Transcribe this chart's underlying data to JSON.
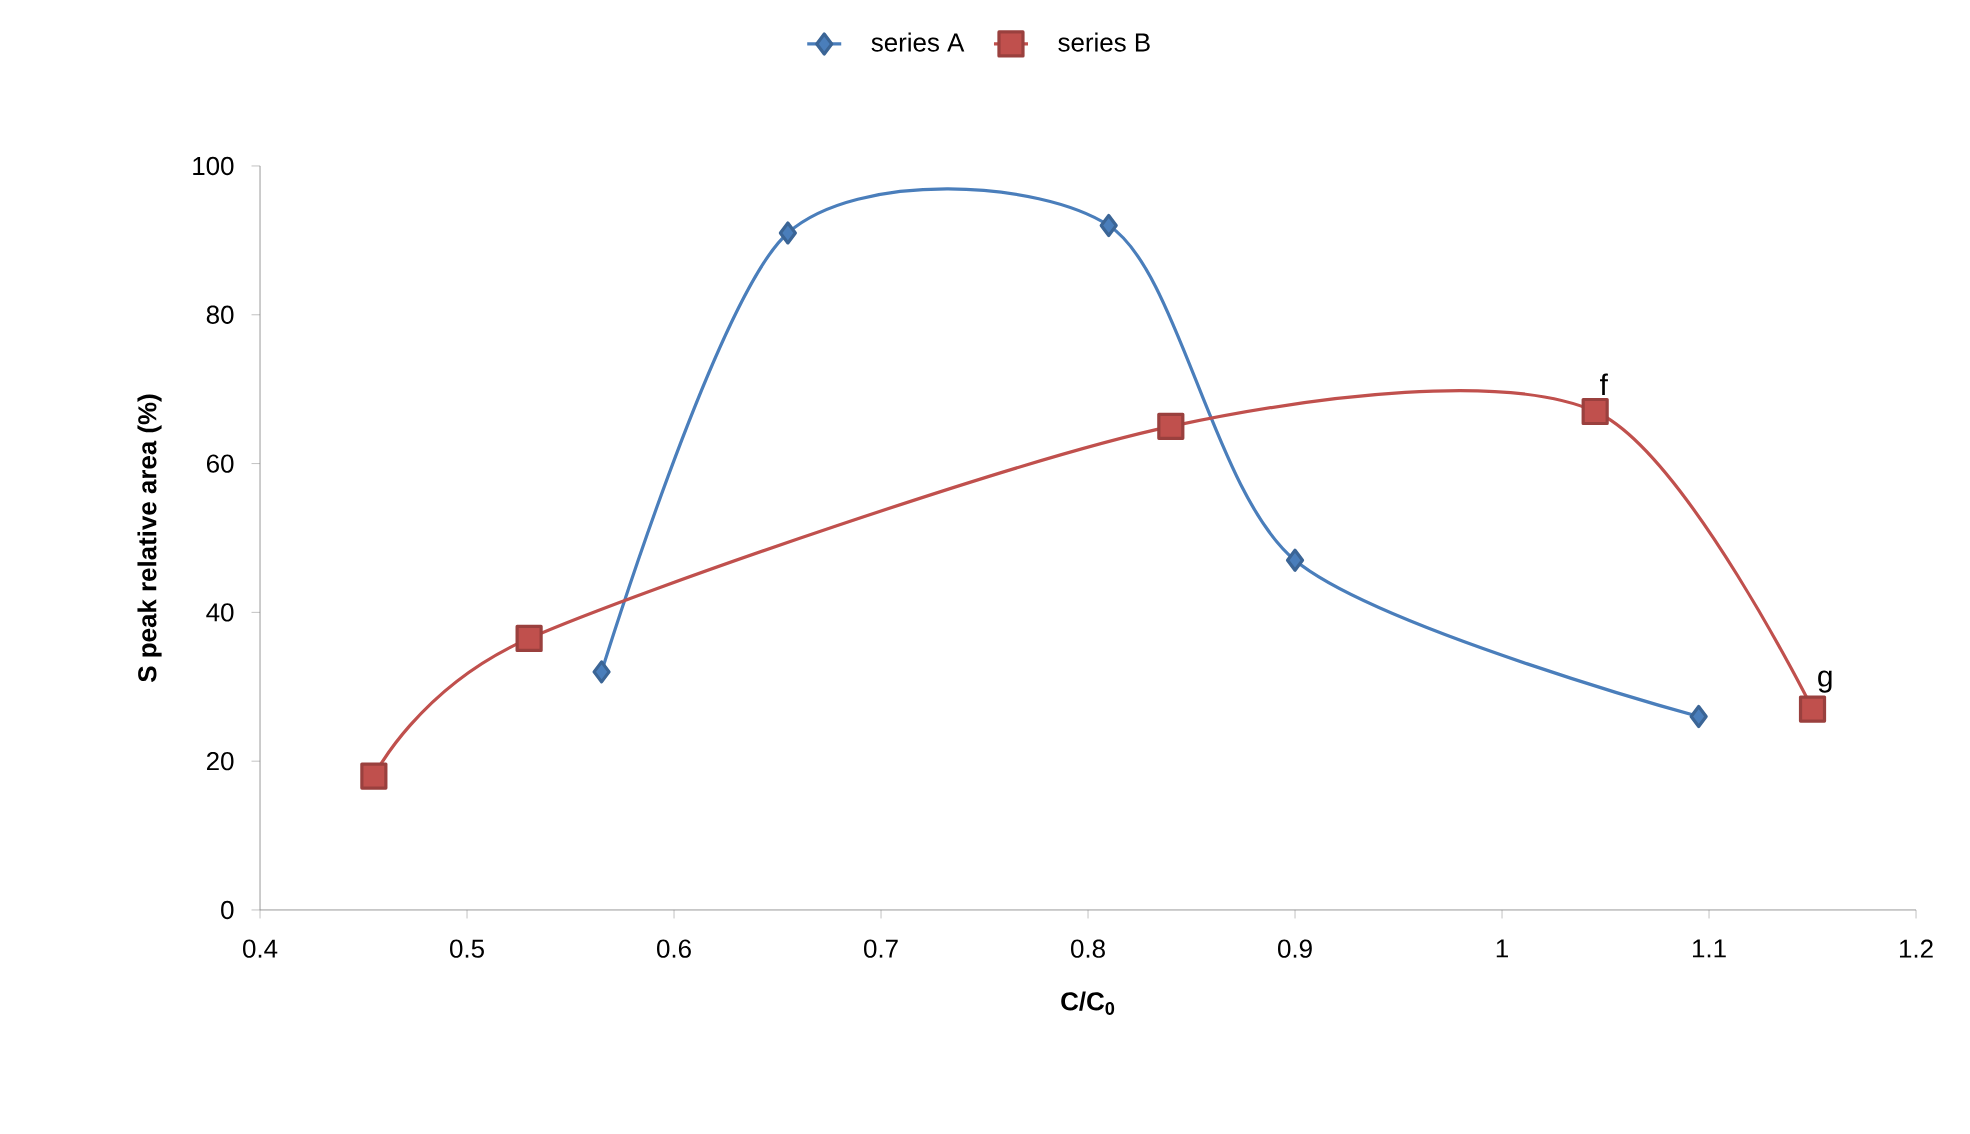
{
  "chart_data": {
    "type": "line",
    "xlabel": "C/C$_{0}$",
    "ylabel": "S peak relative area (%)",
    "xlim": [
      0.4,
      1.2
    ],
    "xticks": [
      0.4,
      0.5,
      0.6,
      0.7,
      0.8,
      0.9,
      1,
      1.1,
      1.2
    ],
    "ylim": [
      0,
      100
    ],
    "yticks": [
      0,
      20,
      40,
      60,
      80,
      100
    ],
    "grid": false,
    "legend": "top",
    "series": [
      {
        "name": "series A",
        "color": "#4a7ebb",
        "marker": "diamond",
        "x": [
          0.565,
          0.655,
          0.81,
          0.9,
          1.095
        ],
        "values": [
          32,
          91,
          92,
          47,
          26
        ]
      },
      {
        "name": "series B",
        "color": "#c0504d",
        "marker": "square",
        "x": [
          0.455,
          0.53,
          0.84,
          1.045,
          1.15
        ],
        "values": [
          18,
          36.5,
          65,
          67,
          27
        ]
      }
    ],
    "annotations": [
      {
        "text": "f",
        "x": 1.045,
        "y": 67
      },
      {
        "text": "g",
        "x": 1.15,
        "y": 27
      }
    ]
  }
}
